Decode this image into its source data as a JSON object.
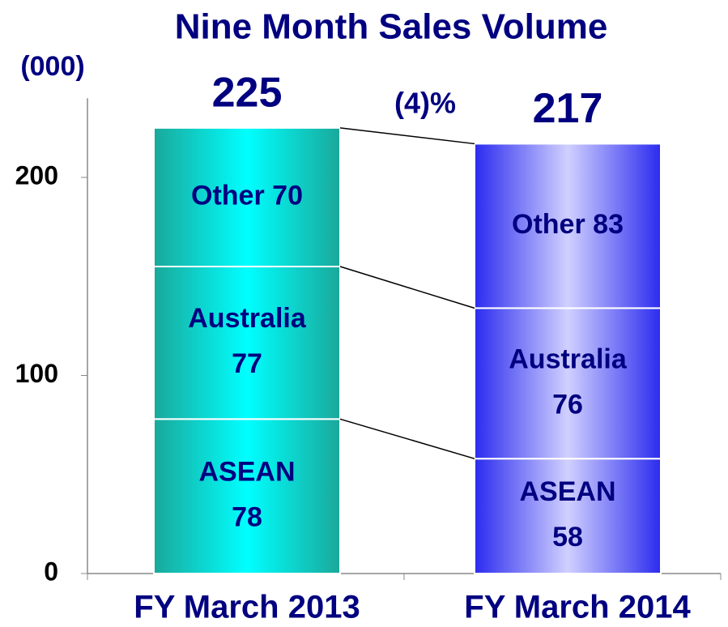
{
  "chart_data": {
    "type": "stacked_bar",
    "title": "Nine Month Sales Volume",
    "y_unit_label": "(000)",
    "categories": [
      "FY March 2013",
      "FY March 2014"
    ],
    "series": [
      {
        "name": "ASEAN",
        "values": [
          78,
          58
        ]
      },
      {
        "name": "Australia",
        "values": [
          77,
          76
        ]
      },
      {
        "name": "Other",
        "values": [
          70,
          83
        ]
      }
    ],
    "totals": [
      225,
      217
    ],
    "change_label": "(4)%",
    "ylim": [
      0,
      240
    ],
    "yticks": [
      0,
      100,
      200
    ],
    "bar_colors": [
      "#1aa89a",
      "#2b2bef"
    ],
    "bar_highlight_colors": [
      "#00ffff",
      "#d0d0ff"
    ]
  }
}
